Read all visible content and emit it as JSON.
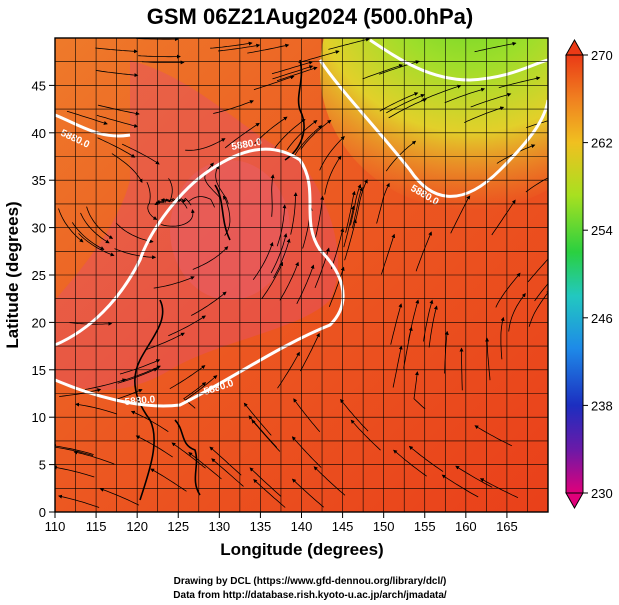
{
  "title": "GSM 06Z21Aug2024 (500.0hPa)",
  "x_axis": {
    "label": "Longitude (degrees)",
    "ticks": [
      "110",
      "115",
      "120",
      "125",
      "130",
      "135",
      "140",
      "145",
      "150",
      "155",
      "160",
      "165"
    ],
    "range": [
      110,
      170
    ]
  },
  "y_axis": {
    "label": "Latitude (degrees)",
    "ticks": [
      "0",
      "5",
      "10",
      "15",
      "20",
      "25",
      "30",
      "35",
      "40",
      "45"
    ],
    "range": [
      0,
      50
    ]
  },
  "colorbar": {
    "ticks": [
      "270",
      "262",
      "254",
      "246",
      "238",
      "230"
    ],
    "range": [
      230,
      270
    ],
    "colors": [
      "#e0007a",
      "#3a1fb0",
      "#1e6ee8",
      "#22b4d8",
      "#2fd06a",
      "#88e020",
      "#e8d020",
      "#f09020",
      "#ea3a16"
    ]
  },
  "contour_labels": [
    "5880.0",
    "5880.0",
    "5880.0",
    "5880.0",
    "5880.0"
  ],
  "credits": {
    "line1": "Drawing by DCL (https://www.gfd-dennou.org/library/dcl/)",
    "line2": "Data from http://database.rish.kyoto-u.ac.jp/arch/jmadata/"
  }
}
